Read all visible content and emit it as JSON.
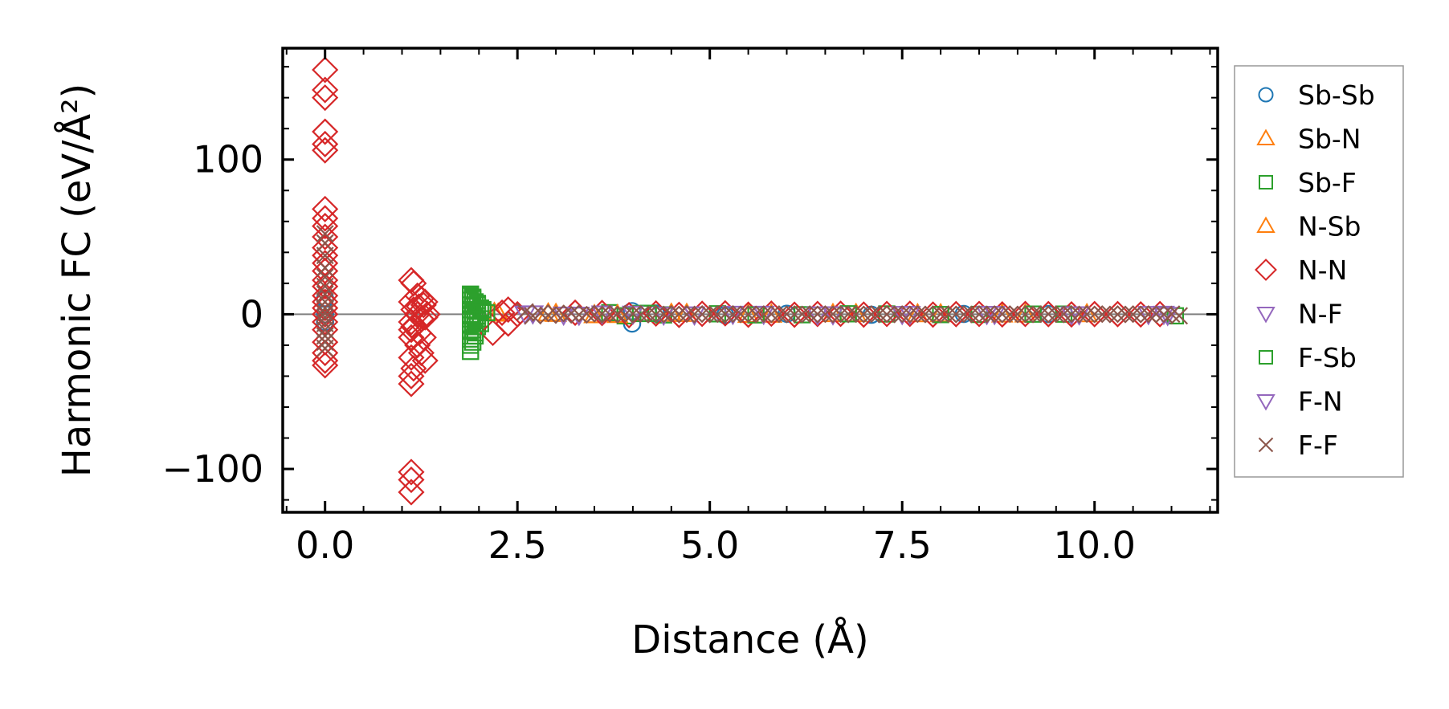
{
  "chart_data": {
    "type": "scatter",
    "title": "",
    "xlabel": "Distance (Å)",
    "ylabel": "Harmonic FC (eV/Å²)",
    "xlim": [
      -0.55,
      11.6
    ],
    "ylim": [
      -128,
      172
    ],
    "xticks": [
      {
        "value": 0.0,
        "label": "0.0"
      },
      {
        "value": 2.5,
        "label": "2.5"
      },
      {
        "value": 5.0,
        "label": "5.0"
      },
      {
        "value": 7.5,
        "label": "7.5"
      },
      {
        "value": 10.0,
        "label": "10.0"
      }
    ],
    "yticks": [
      {
        "value": -100,
        "label": "−100"
      },
      {
        "value": 0,
        "label": "0"
      },
      {
        "value": 100,
        "label": "100"
      }
    ],
    "hline": {
      "y": 0,
      "color": "#808080"
    },
    "legend": {
      "position": "outside-right"
    },
    "series": [
      {
        "name": "Sb-Sb",
        "marker": "circle",
        "color": "#1f77b4",
        "x": [
          0,
          0,
          0,
          3.99,
          3.99,
          4.3,
          5.2,
          6.0,
          7.1,
          8.3,
          9.4
        ],
        "y": [
          0,
          10,
          -5,
          2,
          -6,
          0.5,
          -0.5,
          0.3,
          -0.3,
          0.2,
          0.1
        ]
      },
      {
        "name": "Sb-N",
        "marker": "triangle-up",
        "color": "#ff7f0e",
        "x": [
          2.2,
          2.9,
          3.5,
          4.5,
          5.5,
          6.6,
          7.7,
          8.8,
          9.9
        ],
        "y": [
          1,
          0.6,
          -0.5,
          0.4,
          -0.3,
          0.2,
          0.1,
          -0.1,
          0.1
        ]
      },
      {
        "name": "Sb-F",
        "marker": "square",
        "color": "#2ca02c",
        "x": [
          1.89,
          1.89,
          1.89,
          1.89,
          1.89,
          1.89,
          1.89,
          1.89,
          1.89,
          1.89,
          1.92,
          1.92,
          1.92,
          1.92,
          1.92,
          1.92,
          1.95,
          1.95,
          1.95,
          1.95,
          1.98,
          1.98,
          1.98,
          2.02,
          2.02,
          2.05,
          3.7,
          3.9,
          4.1,
          4.4,
          5.1,
          6.2,
          7.3,
          8.5,
          9.6,
          11.05
        ],
        "y": [
          12,
          9,
          6,
          3,
          0,
          -3,
          -7,
          -11,
          -16,
          -24,
          10,
          5,
          0,
          -5,
          -10,
          -18,
          8,
          2,
          -4,
          -12,
          6,
          -1,
          -8,
          4,
          -3,
          2,
          1,
          -1,
          0.5,
          -0.4,
          0.3,
          -0.3,
          0.2,
          -0.1,
          0.1,
          -1
        ]
      },
      {
        "name": "N-Sb",
        "marker": "triangle-up",
        "color": "#ff7f0e",
        "x": [
          2.25,
          3.0,
          3.8,
          4.7,
          5.8,
          6.9,
          8.0,
          9.1
        ],
        "y": [
          0.5,
          0.3,
          -0.4,
          0.3,
          -0.2,
          0.2,
          0.1,
          -0.1
        ]
      },
      {
        "name": "N-N",
        "marker": "diamond",
        "color": "#d62728",
        "x": [
          0,
          0,
          0,
          0,
          0,
          0,
          0,
          0,
          0,
          0,
          0,
          0,
          0,
          0,
          0,
          0,
          0,
          0,
          0,
          0,
          0,
          0,
          0,
          0,
          0,
          0,
          1.12,
          1.12,
          1.12,
          1.12,
          1.12,
          1.12,
          1.12,
          1.12,
          1.12,
          1.12,
          1.12,
          1.15,
          1.15,
          1.15,
          1.15,
          1.2,
          1.2,
          1.2,
          1.22,
          1.22,
          1.25,
          1.25,
          1.25,
          1.28,
          1.28,
          1.3,
          1.3,
          1.3,
          1.33,
          2.18,
          2.3,
          2.38,
          2.38,
          2.5,
          3.25,
          3.6,
          3.95,
          4.3,
          4.6,
          4.9,
          5.2,
          5.5,
          5.8,
          6.1,
          6.4,
          6.7,
          7.0,
          7.3,
          7.6,
          7.9,
          8.2,
          8.5,
          8.8,
          9.1,
          9.4,
          9.7,
          10.0,
          10.3,
          10.6,
          10.85
        ],
        "y": [
          158,
          145,
          140,
          118,
          110,
          106,
          68,
          62,
          57,
          50,
          43,
          38,
          33,
          28,
          22,
          18,
          12,
          8,
          4,
          0,
          -5,
          -10,
          -18,
          -25,
          -30,
          -33,
          22,
          8,
          -5,
          -10,
          -15,
          -28,
          -40,
          -45,
          -102,
          -107,
          -115,
          20,
          3,
          -8,
          -35,
          12,
          0,
          -20,
          5,
          -12,
          10,
          -3,
          -25,
          6,
          -15,
          8,
          -2,
          -30,
          0,
          -12,
          1,
          3,
          -6,
          0,
          1,
          0.8,
          -0.6,
          0.5,
          -0.4,
          0.3,
          0.6,
          -0.3,
          0.4,
          -0.3,
          0.2,
          0.3,
          -0.2,
          0.2,
          0.3,
          -0.2,
          0.1,
          0.2,
          -0.1,
          0.2,
          0.1,
          -0.1,
          0.1,
          0.1,
          -0.1,
          0.1
        ]
      },
      {
        "name": "N-F",
        "marker": "triangle-down",
        "color": "#9467bd",
        "x": [
          2.7,
          3.1,
          3.6,
          4.4,
          5.3,
          6.4,
          7.5,
          8.6,
          9.7,
          10.7,
          10.95
        ],
        "y": [
          0.5,
          -0.3,
          0.4,
          -0.3,
          0.2,
          -0.2,
          0.1,
          0.1,
          -0.1,
          0.1,
          -0.5
        ]
      },
      {
        "name": "F-Sb",
        "marker": "square",
        "color": "#2ca02c",
        "x": [
          1.89,
          1.89,
          1.92,
          1.95,
          1.98,
          2.02,
          2.05,
          2.1,
          4.2,
          5.6,
          6.8,
          8.0,
          9.2
        ],
        "y": [
          13,
          -20,
          11,
          -14,
          7,
          -6,
          3,
          1,
          0.6,
          -0.4,
          0.3,
          -0.2,
          0.1
        ]
      },
      {
        "name": "F-N",
        "marker": "triangle-down",
        "color": "#9467bd",
        "x": [
          2.6,
          3.3,
          4.0,
          4.8,
          5.7,
          6.6,
          7.6,
          8.7,
          9.8,
          10.9
        ],
        "y": [
          0.3,
          -0.4,
          0.3,
          -0.2,
          0.2,
          -0.1,
          0.1,
          0.1,
          -0.1,
          0.2
        ]
      },
      {
        "name": "F-F",
        "marker": "x",
        "color": "#8c564b",
        "x": [
          0,
          0,
          0,
          0,
          0,
          0,
          0,
          0,
          0,
          0,
          0,
          0,
          0,
          0,
          0,
          0,
          2.6,
          2.7,
          2.8,
          2.9,
          3.0,
          3.1,
          3.2,
          3.3,
          3.4,
          3.5,
          3.6,
          3.7,
          3.8,
          3.9,
          4.0,
          4.1,
          4.2,
          4.3,
          4.4,
          4.5,
          4.6,
          4.7,
          4.8,
          4.9,
          5.0,
          5.1,
          5.2,
          5.3,
          5.4,
          5.5,
          5.6,
          5.7,
          5.8,
          5.9,
          6.0,
          6.1,
          6.2,
          6.3,
          6.4,
          6.5,
          6.6,
          6.7,
          6.8,
          6.9,
          7.0,
          7.1,
          7.2,
          7.3,
          7.4,
          7.5,
          7.6,
          7.7,
          7.8,
          7.9,
          8.0,
          8.1,
          8.2,
          8.3,
          8.4,
          8.5,
          8.6,
          8.7,
          8.8,
          8.9,
          9.0,
          9.1,
          9.2,
          9.3,
          9.4,
          9.5,
          9.6,
          9.7,
          9.8,
          9.9,
          10.0,
          10.1,
          10.2,
          10.3,
          10.4,
          10.5,
          10.6,
          10.7,
          10.8,
          10.9,
          11.0,
          11.1
        ],
        "y": [
          52,
          46,
          38,
          30,
          24,
          18,
          13,
          8,
          4,
          1,
          -2,
          -6,
          -10,
          -14,
          -18,
          -22,
          1.5,
          -1,
          0.8,
          -0.6,
          0.5,
          -0.4,
          0.6,
          -0.3,
          0.4,
          -0.3,
          0.3,
          -0.2,
          0.4,
          -0.3,
          0.2,
          -0.2,
          0.3,
          -0.2,
          0.2,
          -0.1,
          0.2,
          -0.2,
          0.1,
          -0.1,
          0.2,
          -0.1,
          0.1,
          -0.1,
          0.2,
          -0.1,
          0.1,
          -0.1,
          0.1,
          -0.1,
          0.1,
          -0.1,
          0.1,
          -0.1,
          0.1,
          -0.1,
          0.1,
          -0.1,
          0.1,
          -0.1,
          0.1,
          -0.1,
          0.1,
          -0.1,
          0.1,
          -0.1,
          0.1,
          -0.1,
          0.1,
          -0.1,
          0.1,
          -0.1,
          0.1,
          -0.1,
          0.1,
          -0.1,
          0.1,
          -0.1,
          0.1,
          -0.1,
          0.1,
          -0.1,
          0.1,
          -0.1,
          0.1,
          -0.1,
          0.1,
          -0.1,
          0.1,
          -0.1,
          0.1,
          -0.1,
          0.1,
          -0.1,
          0.1,
          -0.1,
          0.1,
          -0.1,
          0.1,
          -0.1,
          0.1,
          -1
        ]
      }
    ]
  }
}
